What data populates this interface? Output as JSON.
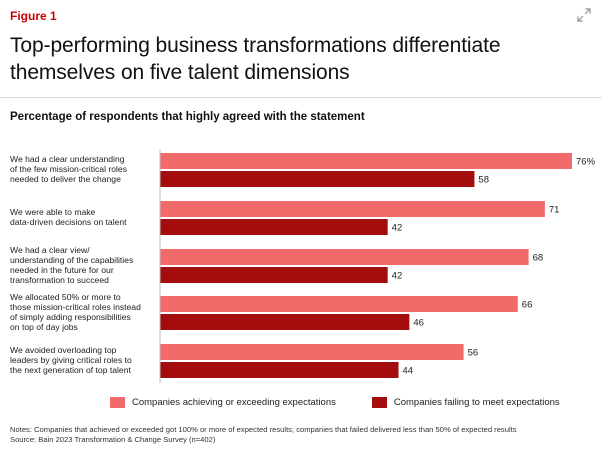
{
  "figure": {
    "label": "Figure 1",
    "title": "Top-performing business transformations differentiate themselves on five talent dimensions",
    "subtitle": "Percentage of respondents that highly agreed with the statement",
    "expand_icon": "expand-arrows-icon"
  },
  "chart_data": {
    "type": "bar",
    "orientation": "horizontal",
    "title": "Percentage of respondents that highly agreed with the statement",
    "categories": [
      "We had a clear understanding of the few mission-critical roles needed to deliver the change",
      "We were able to make data-driven decisions on talent",
      "We had a clear view/ understanding of the capabilities needed in the future for our transformation to succeed",
      "We allocated 50% or more to those mission-critical roles instead of simply adding responsibilities on top of day jobs",
      "We avoided overloading top leaders by giving critical roles to the next generation of top talent"
    ],
    "category_lines": [
      [
        "We had a clear understanding",
        "of the few mission-critical roles",
        "needed to deliver the change"
      ],
      [
        "We were able to make",
        "data-driven decisions on talent"
      ],
      [
        "We had a clear view/",
        "understanding of the capabilities",
        "needed in the future for our",
        "transformation to succeed"
      ],
      [
        "We allocated 50% or more to",
        "those mission-critical roles instead",
        "of simply adding responsibilities",
        "on top of day jobs"
      ],
      [
        "We avoided overloading top",
        "leaders by giving critical roles to",
        "the next generation of top talent"
      ]
    ],
    "series": [
      {
        "name": "Companies achieving or exceeding expectations",
        "color": "#f26b6b",
        "values": [
          76,
          71,
          68,
          66,
          56
        ],
        "value_labels": [
          "76%",
          "71",
          "68",
          "66",
          "56"
        ]
      },
      {
        "name": "Companies failing to meet expectations",
        "color": "#a30d0d",
        "values": [
          58,
          42,
          42,
          46,
          44
        ],
        "value_labels": [
          "58",
          "42",
          "42",
          "46",
          "44"
        ]
      }
    ],
    "xlim": [
      0,
      76
    ],
    "grid": false,
    "legend_position": "bottom"
  },
  "notes": {
    "line1": "Notes: Companies that achieved or exceeded got 100% or more of expected results; companies that failed delivered less than 50% of expected results",
    "line2": "Source: Bain 2023 Transformation & Change Survey (n=402)"
  }
}
